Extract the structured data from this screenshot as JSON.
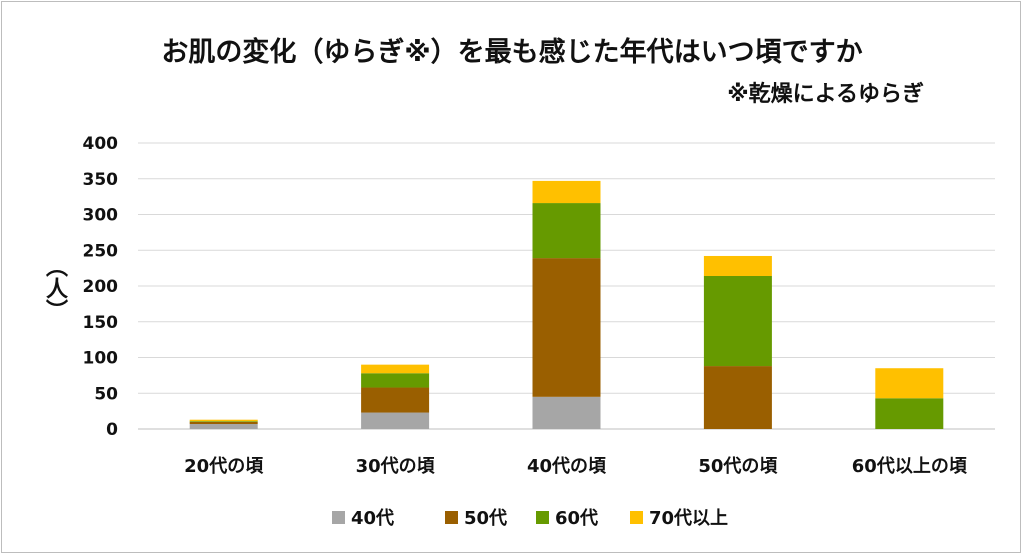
{
  "chart_data": {
    "type": "bar",
    "stacked": true,
    "title": "お肌の変化（ゆらぎ※）を最も感じた年代はいつ頃ですか",
    "subtitle": "※乾燥によるゆらぎ",
    "ylabel": "（人）",
    "xlabel": "",
    "categories": [
      "20代の頃",
      "30代の頃",
      "40代の頃",
      "50代の頃",
      "60代以上の頃"
    ],
    "y_ticks": [
      "0",
      "50",
      "100",
      "150",
      "200",
      "250",
      "300",
      "350",
      "400"
    ],
    "ylim": [
      0,
      400
    ],
    "grid": true,
    "legend_position": "bottom",
    "series": [
      {
        "name": "40代",
        "color": "#a6a6a6",
        "values": [
          7,
          23,
          45,
          0,
          0
        ]
      },
      {
        "name": "50代",
        "color": "#9a5f00",
        "values": [
          3,
          35,
          194,
          88,
          0
        ]
      },
      {
        "name": "60代",
        "color": "#669a00",
        "values": [
          1,
          20,
          77,
          126,
          43
        ]
      },
      {
        "name": "70代以上",
        "color": "#ffc000",
        "values": [
          2,
          12,
          31,
          28,
          42
        ]
      }
    ]
  }
}
